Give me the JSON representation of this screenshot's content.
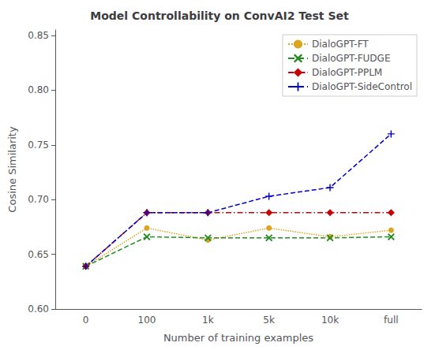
{
  "chart_data": {
    "type": "line",
    "title": "Model Controllability on ConvAI2 Test Set",
    "x_label": "Number of training examples",
    "y_label": "Cosine Similarity",
    "categories": [
      "0",
      "100",
      "1k",
      "5k",
      "10k",
      "full"
    ],
    "series": [
      {
        "name": "DialoGPT-FT",
        "color": "#DAA520",
        "line_style": "dotted",
        "marker": "circle",
        "values": [
          0.639,
          0.674,
          0.663,
          0.674,
          0.666,
          0.672
        ]
      },
      {
        "name": "DialoGPT-FUDGE",
        "color": "#228B22",
        "line_style": "dashed",
        "marker": "x",
        "values": [
          0.639,
          0.666,
          0.665,
          0.665,
          0.665,
          0.666
        ]
      },
      {
        "name": "DialoGPT-PPLM",
        "color": "#CC0000",
        "line_style": "dashdot",
        "marker": "diamond",
        "values": [
          0.639,
          0.688,
          0.688,
          0.688,
          0.688,
          0.688
        ]
      },
      {
        "name": "DialoGPT-SideControl",
        "color": "#0000CC",
        "line_style": "dashed",
        "marker": "plus",
        "values": [
          0.639,
          0.688,
          0.688,
          0.703,
          0.711,
          0.76
        ]
      }
    ],
    "ylim": [
      0.6,
      0.855
    ],
    "yticks": [
      {
        "value": 0.6,
        "label": "0.60"
      },
      0.65,
      {
        "value": 0.7,
        "label": "0.70"
      },
      0.75,
      {
        "value": 0.8,
        "label": "0.80"
      },
      0.85
    ],
    "grid": false,
    "legend": "upper right"
  }
}
